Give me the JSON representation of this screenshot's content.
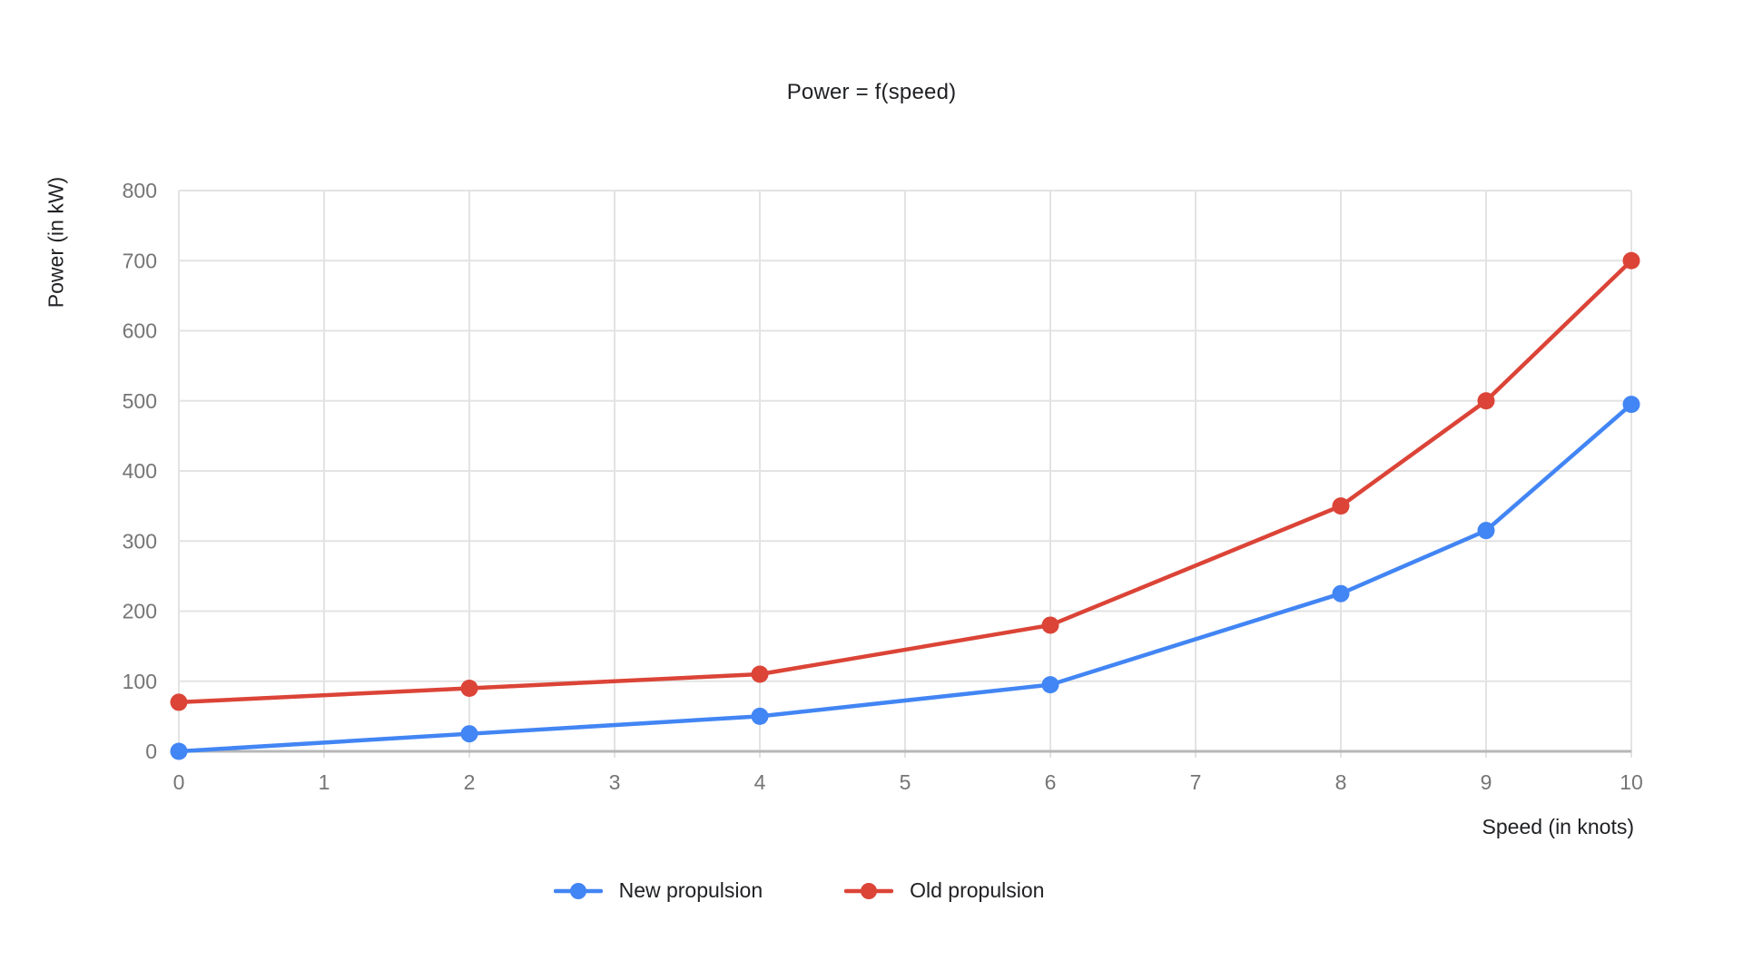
{
  "title": "Power = f(speed)",
  "chart_data": {
    "type": "line",
    "title": "Power = f(speed)",
    "xlabel": "Speed (in knots)",
    "ylabel": "Power (in kW)",
    "x": [
      0,
      2,
      4,
      6,
      8,
      9,
      10
    ],
    "series": [
      {
        "name": "New propulsion",
        "color": "#4285f4",
        "values": [
          0,
          25,
          50,
          95,
          225,
          315,
          495
        ]
      },
      {
        "name": "Old propulsion",
        "color": "#db4437",
        "values": [
          70,
          90,
          110,
          180,
          350,
          500,
          700
        ]
      }
    ],
    "xlim": [
      0,
      10
    ],
    "ylim": [
      0,
      800
    ],
    "x_ticks": [
      0,
      1,
      2,
      3,
      4,
      5,
      6,
      7,
      8,
      9,
      10
    ],
    "y_ticks": [
      0,
      100,
      200,
      300,
      400,
      500,
      600,
      700,
      800
    ],
    "grid": true,
    "legend_position": "bottom",
    "colors": {
      "gridline": "#e3e3e3",
      "axis_line": "#b7b7b7",
      "tick_label": "#757575",
      "text": "#202124",
      "background": "#ffffff"
    }
  }
}
